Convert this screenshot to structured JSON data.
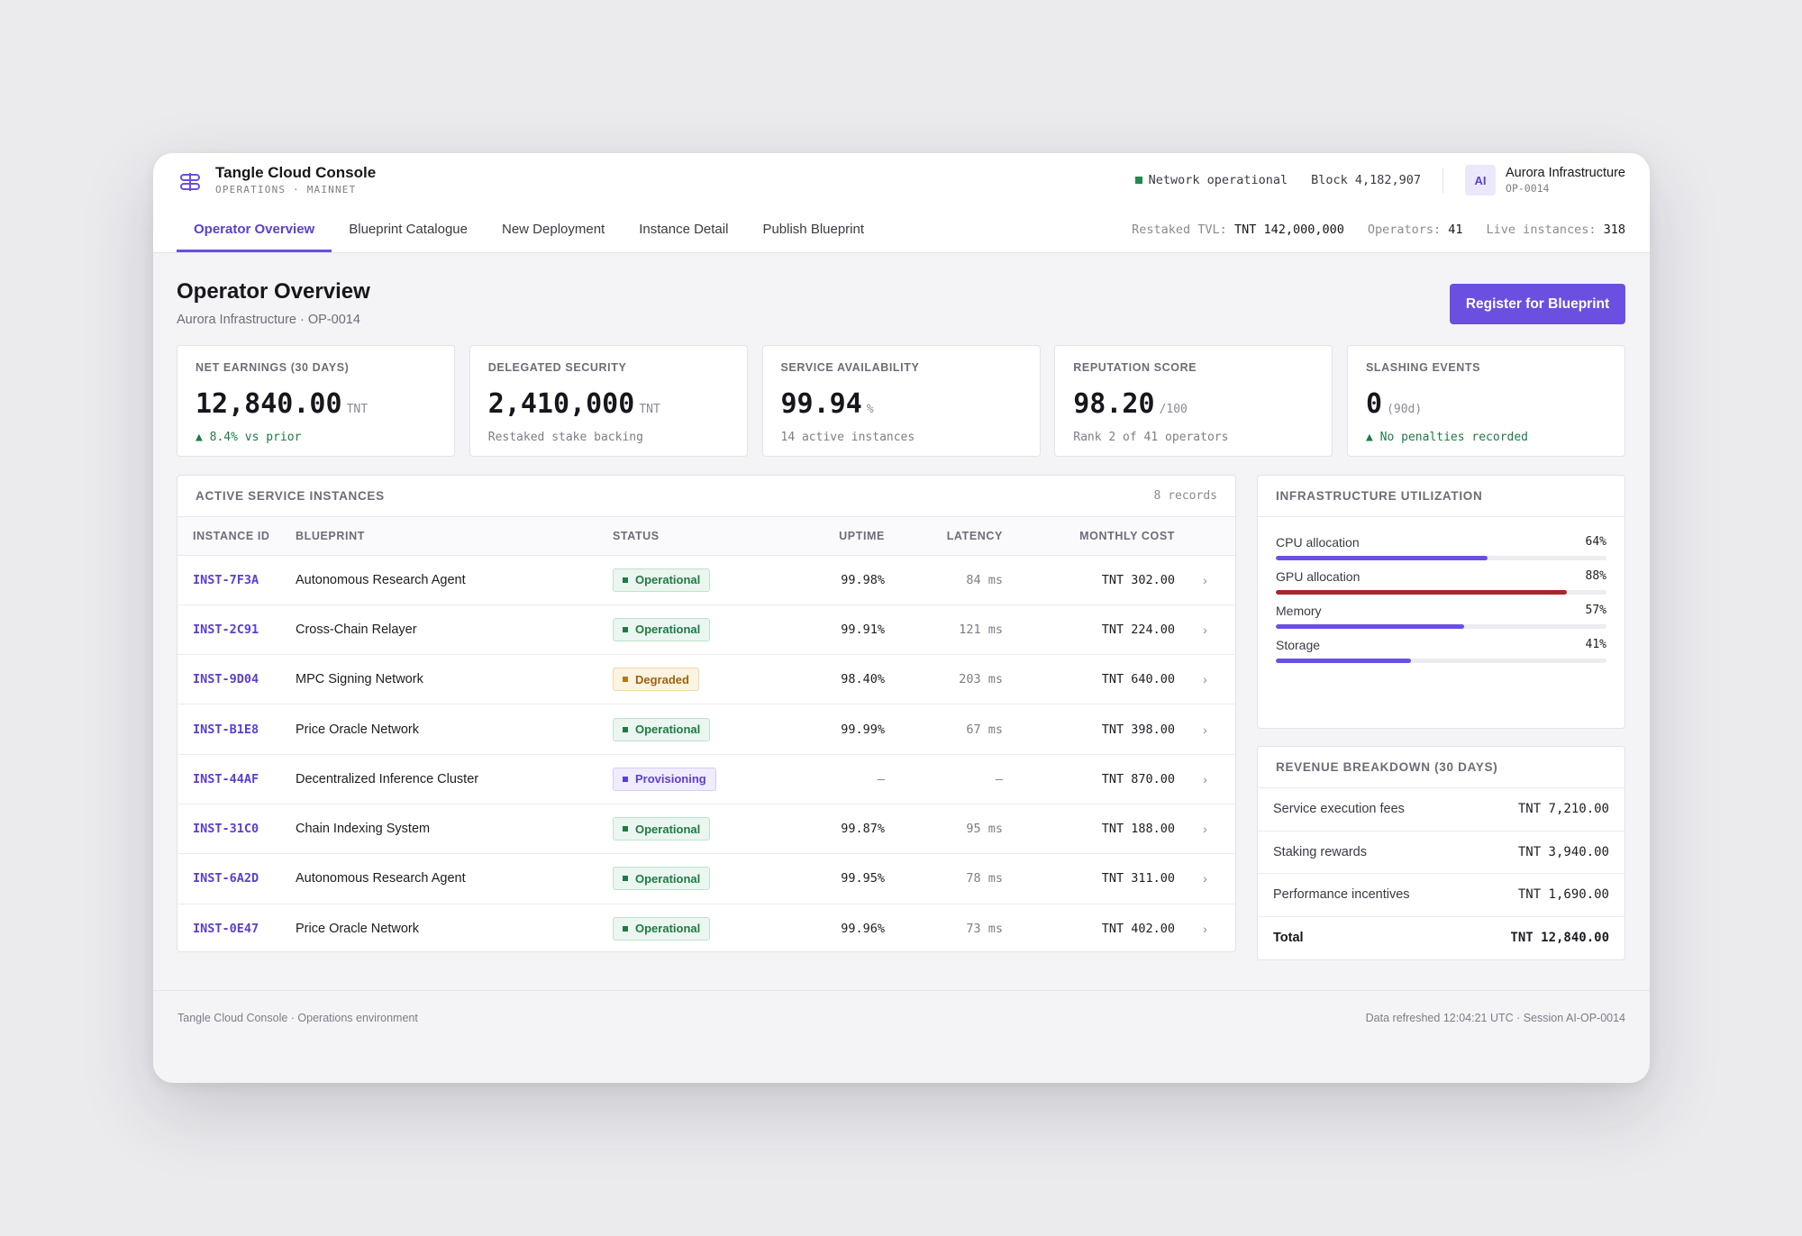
{
  "app": {
    "title": "Tangle Cloud Console",
    "subtitle": "OPERATIONS · MAINNET",
    "logo_icon": "tangle-logo-icon"
  },
  "topbar": {
    "network_status": "Network operational",
    "block": "Block 4,182,907",
    "avatar_initials": "AI",
    "org_name": "Aurora Infrastructure",
    "org_id": "OP-0014"
  },
  "tabs": [
    {
      "label": "Operator Overview",
      "active": true
    },
    {
      "label": "Blueprint Catalogue",
      "active": false
    },
    {
      "label": "New Deployment",
      "active": false
    },
    {
      "label": "Instance Detail",
      "active": false
    },
    {
      "label": "Publish Blueprint",
      "active": false
    }
  ],
  "network_stats": {
    "tvl_label": "Restaked TVL:",
    "tvl_value": "TNT 142,000,000",
    "operators_label": "Operators:",
    "operators_value": "41",
    "instances_label": "Live instances:",
    "instances_value": "318"
  },
  "page": {
    "title": "Operator Overview",
    "subtitle": "Aurora Infrastructure · OP-0014",
    "primary_action": "Register for Blueprint"
  },
  "kpis": [
    {
      "label": "NET EARNINGS (30 DAYS)",
      "value": "12,840.00",
      "unit": "TNT",
      "note": "▲ 8.4% vs prior",
      "tone": "good"
    },
    {
      "label": "DELEGATED SECURITY",
      "value": "2,410,000",
      "unit": "TNT",
      "note": "Restaked stake backing",
      "tone": "muted"
    },
    {
      "label": "SERVICE AVAILABILITY",
      "value": "99.94",
      "unit": "%",
      "note": "14 active instances",
      "tone": "muted"
    },
    {
      "label": "REPUTATION SCORE",
      "value": "98.20",
      "unit": "/100",
      "note": "Rank 2 of 41 operators",
      "tone": "muted"
    },
    {
      "label": "SLASHING EVENTS",
      "value": "0",
      "unit": "(90d)",
      "note": "▲ No penalties recorded",
      "tone": "good"
    }
  ],
  "instances": {
    "title": "ACTIVE SERVICE INSTANCES",
    "count": "8 records",
    "columns": [
      "INSTANCE ID",
      "BLUEPRINT",
      "STATUS",
      "UPTIME",
      "LATENCY",
      "MONTHLY COST"
    ],
    "rows": [
      {
        "id": "INST-7F3A",
        "blueprint": "Autonomous Research Agent",
        "status": "Operational",
        "uptime": "99.98%",
        "latency": "84 ms",
        "cost": "TNT 302.00"
      },
      {
        "id": "INST-2C91",
        "blueprint": "Cross-Chain Relayer",
        "status": "Operational",
        "uptime": "99.91%",
        "latency": "121 ms",
        "cost": "TNT 224.00"
      },
      {
        "id": "INST-9D04",
        "blueprint": "MPC Signing Network",
        "status": "Degraded",
        "uptime": "98.40%",
        "latency": "203 ms",
        "cost": "TNT 640.00"
      },
      {
        "id": "INST-B1E8",
        "blueprint": "Price Oracle Network",
        "status": "Operational",
        "uptime": "99.99%",
        "latency": "67 ms",
        "cost": "TNT 398.00"
      },
      {
        "id": "INST-44AF",
        "blueprint": "Decentralized Inference Cluster",
        "status": "Provisioning",
        "uptime": "—",
        "latency": "—",
        "cost": "TNT 870.00"
      },
      {
        "id": "INST-31C0",
        "blueprint": "Chain Indexing System",
        "status": "Operational",
        "uptime": "99.87%",
        "latency": "95 ms",
        "cost": "TNT 188.00"
      },
      {
        "id": "INST-6A2D",
        "blueprint": "Autonomous Research Agent",
        "status": "Operational",
        "uptime": "99.95%",
        "latency": "78 ms",
        "cost": "TNT 311.00"
      },
      {
        "id": "INST-0E47",
        "blueprint": "Price Oracle Network",
        "status": "Operational",
        "uptime": "99.96%",
        "latency": "73 ms",
        "cost": "TNT 402.00"
      }
    ]
  },
  "utilization": {
    "title": "INFRASTRUCTURE UTILIZATION",
    "items": [
      {
        "label": "CPU allocation",
        "pct_text": "64%",
        "pct": 64,
        "hot": false
      },
      {
        "label": "GPU allocation",
        "pct_text": "88%",
        "pct": 88,
        "hot": true
      },
      {
        "label": "Memory",
        "pct_text": "57%",
        "pct": 57,
        "hot": false
      },
      {
        "label": "Storage",
        "pct_text": "41%",
        "pct": 41,
        "hot": false
      }
    ]
  },
  "revenue": {
    "title": "REVENUE BREAKDOWN (30 DAYS)",
    "rows": [
      {
        "label": "Service execution fees",
        "amount": "TNT 7,210.00"
      },
      {
        "label": "Staking rewards",
        "amount": "TNT 3,940.00"
      },
      {
        "label": "Performance incentives",
        "amount": "TNT 1,690.00"
      }
    ],
    "total_label": "Total",
    "total_amount": "TNT 12,840.00"
  },
  "footer": {
    "left": "Tangle Cloud Console · Operations environment",
    "right": "Data refreshed 12:04:21 UTC · Session AI-OP-0014"
  },
  "colors": {
    "accent": "#6a4fe0",
    "success": "#1f7a45",
    "warning": "#9a6410",
    "danger": "#a3282b"
  }
}
